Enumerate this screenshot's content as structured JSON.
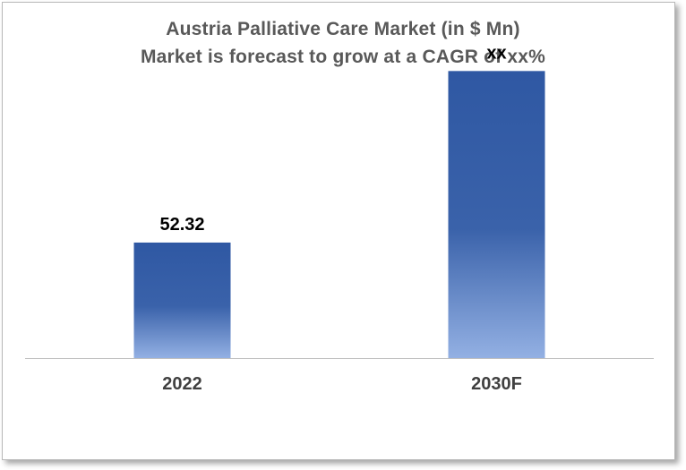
{
  "chart_data": {
    "type": "bar",
    "title": "Austria Palliative Care Market (in $ Mn)",
    "subtitle": "Market is forecast to grow at a CAGR of xx%",
    "categories": [
      "2022",
      "2030F"
    ],
    "values": [
      52.32,
      null
    ],
    "data_labels": [
      "52.32",
      "xx"
    ],
    "display_levels": [
      52.32,
      130.0
    ],
    "ylim": [
      0,
      150
    ],
    "grid": false,
    "legend": "none",
    "colors": {
      "bar_top": "#2f58a3",
      "bar_mid": "#3a62aa",
      "bar_bottom": "#93b0e3",
      "axis": "#bfbfbf"
    }
  }
}
